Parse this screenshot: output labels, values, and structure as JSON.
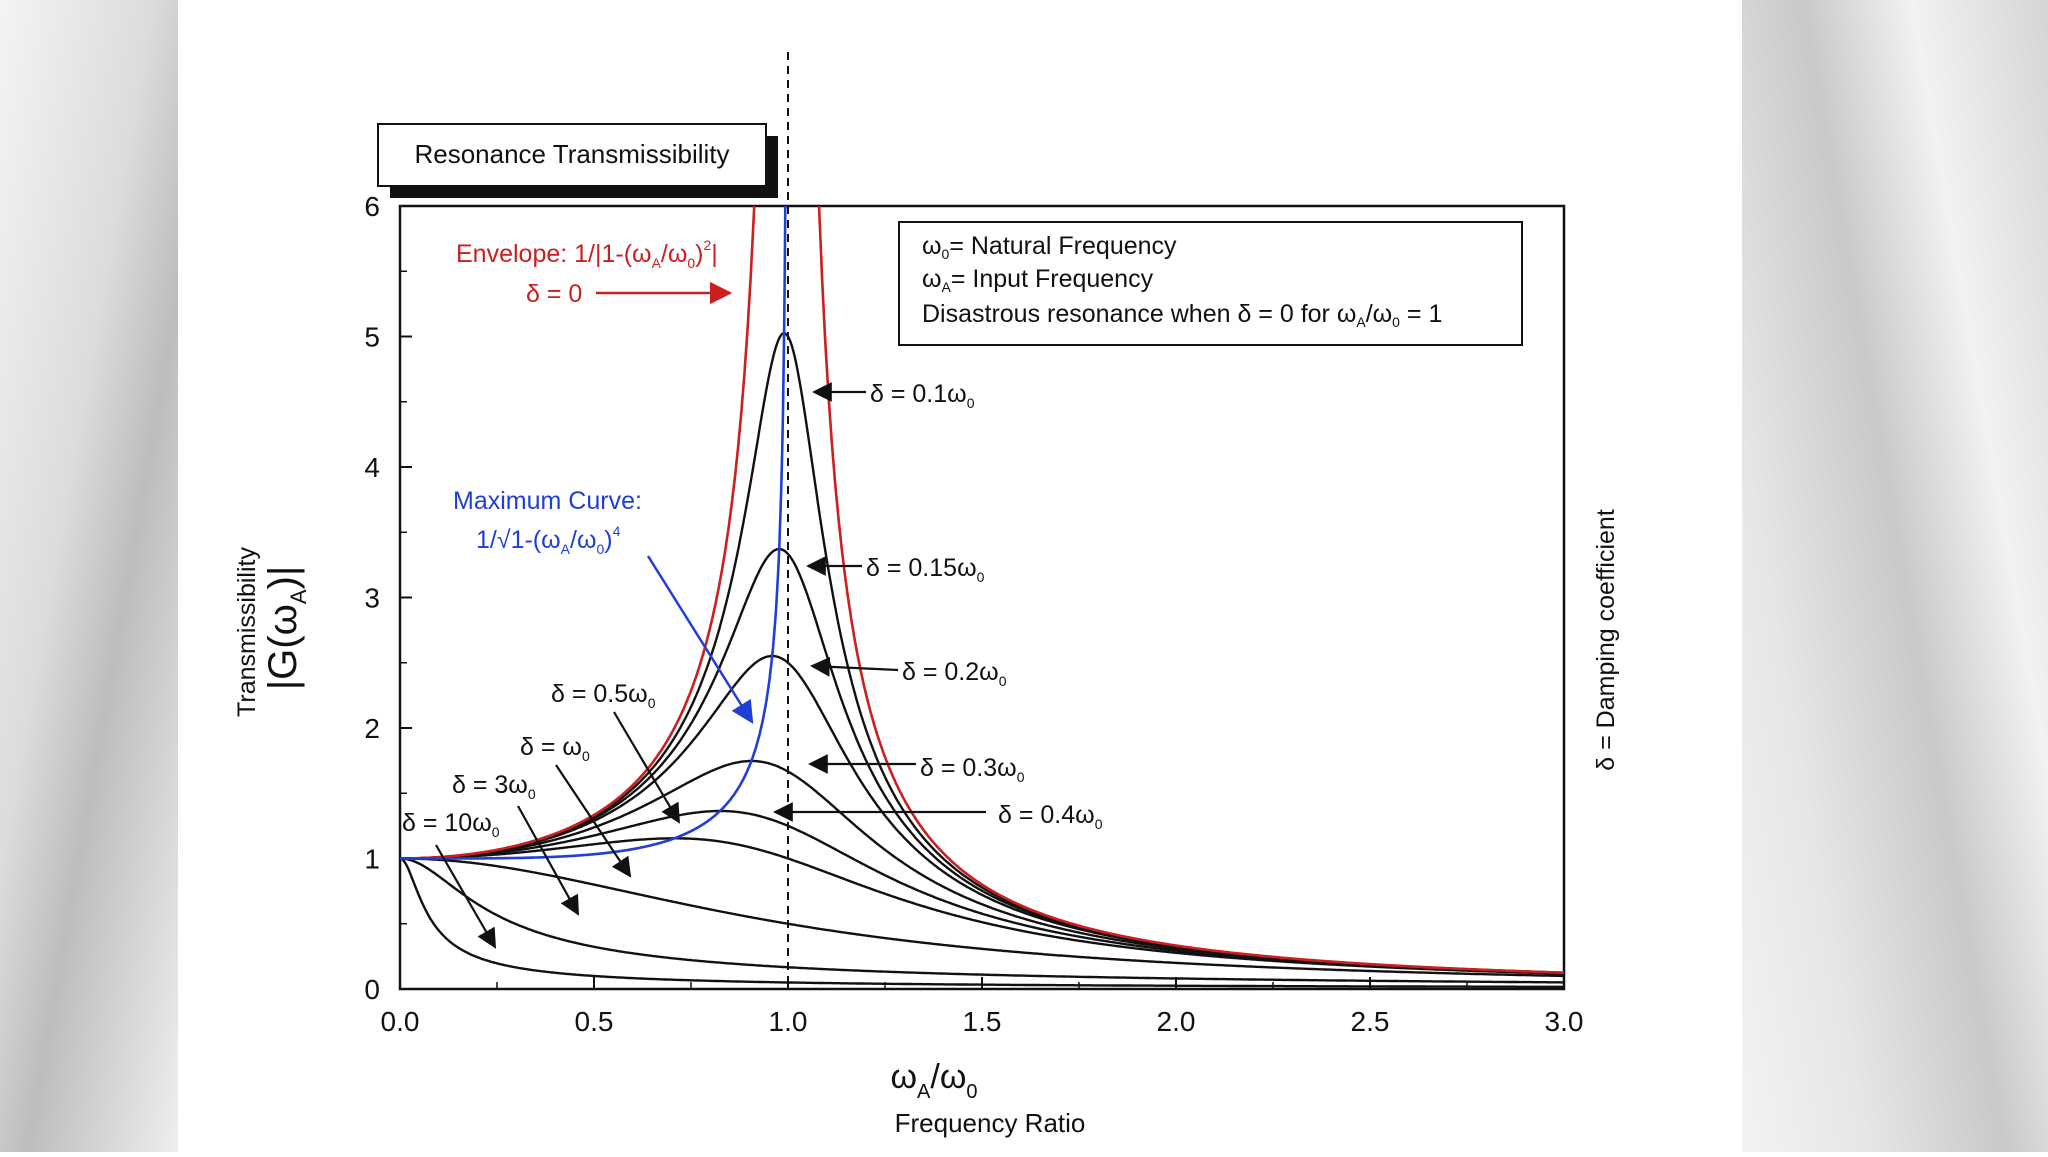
{
  "chart_data": {
    "type": "line",
    "title": "Resonance Transmissibility",
    "xlabel_main": "ω",
    "xlabel_sub1": "A",
    "xlabel_mid": "/ω",
    "xlabel_sub2": "0",
    "xlabel_caption": "Frequency Ratio",
    "ylabel_caption": "Transmissibility",
    "ylabel_main": "|G(ω",
    "ylabel_sub": "A",
    "ylabel_end": ")|",
    "right_label": "δ = Damping coefficient",
    "xlim": [
      0,
      3
    ],
    "ylim": [
      0,
      6
    ],
    "xticks": [
      "0.0",
      "0.5",
      "1.0",
      "1.5",
      "2.0",
      "2.5",
      "3.0"
    ],
    "yticks": [
      "0",
      "1",
      "2",
      "3",
      "4",
      "5",
      "6"
    ],
    "dashed_line_x": 1.0,
    "legend_box": {
      "line1": "= Natural Frequency",
      "line2": "= Input Frequency",
      "line3a": "Disastrous  resonance when δ = 0 for ω",
      "line3b": "/ω",
      "line3c": " = 1"
    },
    "envelope": {
      "label": "Envelope: 1/|1-(ω",
      "label_mid": "/ω",
      "label_end": ")",
      "label_close": "|",
      "delta_label": "δ = 0",
      "color": "#cc1f1f"
    },
    "max_curve": {
      "label": "Maximum Curve:",
      "formula": "1/√1-(ω",
      "formula_mid": "/ω",
      "formula_end": ")",
      "color": "#1f3fd6"
    },
    "series": [
      {
        "name": "δ = 0.1ω0",
        "label": "δ = 0.1ω",
        "delta": 0.1
      },
      {
        "name": "δ = 0.15ω0",
        "label": "δ = 0.15ω",
        "delta": 0.15
      },
      {
        "name": "δ = 0.2ω0",
        "label": "δ = 0.2ω",
        "delta": 0.2
      },
      {
        "name": "δ = 0.3ω0",
        "label": "δ = 0.3ω",
        "delta": 0.3
      },
      {
        "name": "δ = 0.4ω0",
        "label": "δ = 0.4ω",
        "delta": 0.4
      },
      {
        "name": "δ = 0.5ω0",
        "label": "δ = 0.5ω",
        "delta": 0.5
      },
      {
        "name": "δ = ω0",
        "label": "δ = ω",
        "delta": 1.0
      },
      {
        "name": "δ = 3ω0",
        "label": "δ = 3ω",
        "delta": 3.0
      },
      {
        "name": "δ = 10ω0",
        "label": "δ = 10ω",
        "delta": 10.0
      }
    ],
    "colors": {
      "curves": "#111111",
      "envelope": "#cc1f1f",
      "max": "#1f3fd6"
    }
  }
}
